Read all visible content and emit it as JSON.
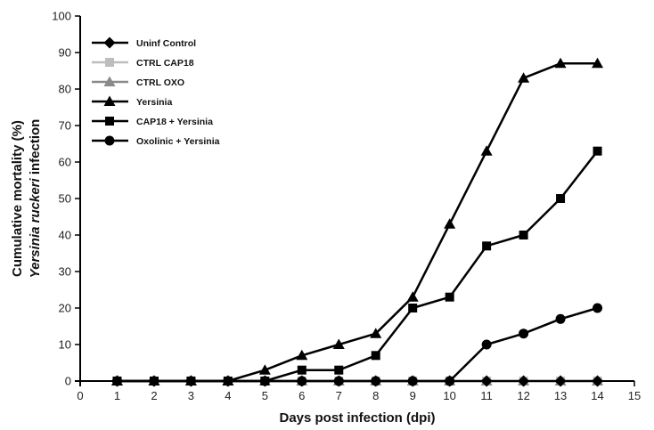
{
  "chart_data": {
    "type": "line",
    "xlabel": "Days post infection (dpi)",
    "ylabel_line1": "Cumulative mortality (%)",
    "ylabel_line2_italic": "Yersinia ruckeri",
    "ylabel_line2_rest": " infection",
    "xlim": [
      0,
      15
    ],
    "ylim": [
      0,
      100
    ],
    "xticks": [
      0,
      1,
      2,
      3,
      4,
      5,
      6,
      7,
      8,
      9,
      10,
      11,
      12,
      13,
      14,
      15
    ],
    "yticks": [
      0,
      10,
      20,
      30,
      40,
      50,
      60,
      70,
      80,
      90,
      100
    ],
    "grid": false,
    "legend_position": "top-left",
    "x": [
      1,
      2,
      3,
      4,
      5,
      6,
      7,
      8,
      9,
      10,
      11,
      12,
      13,
      14
    ],
    "series": [
      {
        "name": "Uninf Control",
        "marker": "diamond",
        "color": "#000000",
        "values": [
          0,
          0,
          0,
          0,
          0,
          0,
          0,
          0,
          0,
          0,
          0,
          0,
          0,
          0
        ]
      },
      {
        "name": "CTRL CAP18",
        "marker": "square",
        "color": "#bdbdbd",
        "values": [
          0,
          0,
          0,
          0,
          0,
          0,
          0,
          0,
          0,
          0,
          0,
          0,
          0,
          0
        ]
      },
      {
        "name": "CTRL OXO",
        "marker": "triangle",
        "color": "#8a8a8a",
        "values": [
          0,
          0,
          0,
          0,
          0,
          0,
          0,
          0,
          0,
          0,
          0,
          0,
          0,
          0
        ]
      },
      {
        "name": "Yersinia",
        "marker": "triangle",
        "color": "#000000",
        "values": [
          0,
          0,
          0,
          0,
          3,
          7,
          10,
          13,
          23,
          43,
          63,
          83,
          87,
          87
        ]
      },
      {
        "name": "CAP18 + Yersinia",
        "marker": "square",
        "color": "#000000",
        "values": [
          0,
          0,
          0,
          0,
          0,
          3,
          3,
          7,
          20,
          23,
          37,
          40,
          50,
          63
        ]
      },
      {
        "name": "Oxolinic + Yersinia",
        "marker": "circle",
        "color": "#000000",
        "values": [
          0,
          0,
          0,
          0,
          0,
          0,
          0,
          0,
          0,
          0,
          10,
          13,
          17,
          20
        ]
      }
    ]
  }
}
